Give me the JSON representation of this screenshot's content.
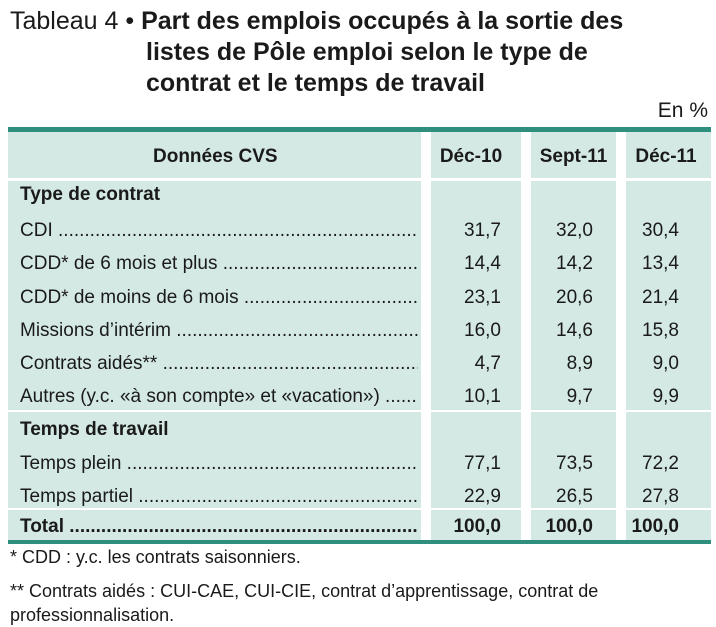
{
  "title": {
    "prefix": "Tableau 4 •",
    "line1": "Part des emplois occupés à la sortie des",
    "line2": "listes de Pôle emploi selon le type de",
    "line3": "contrat et le temps de travail"
  },
  "unit": "En %",
  "table": {
    "header": {
      "label": "Données  CVS",
      "cols": [
        "Déc-10",
        "Sept-11",
        "Déc-11"
      ]
    },
    "sections": [
      {
        "title": "Type de contrat",
        "rows": [
          {
            "label": "CDI",
            "values": [
              "31,7",
              "32,0",
              "30,4"
            ]
          },
          {
            "label": "CDD* de 6 mois et plus",
            "values": [
              "14,4",
              "14,2",
              "13,4"
            ]
          },
          {
            "label": "CDD* de moins de 6 mois",
            "values": [
              "23,1",
              "20,6",
              "21,4"
            ]
          },
          {
            "label": "Missions d’intérim",
            "values": [
              "16,0",
              "14,6",
              "15,8"
            ]
          },
          {
            "label": "Contrats aidés**",
            "values": [
              "4,7",
              "8,9",
              "9,0"
            ]
          },
          {
            "label": "Autres (y.c. «à son compte» et «vacation»)",
            "values": [
              "10,1",
              "9,7",
              "9,9"
            ]
          }
        ]
      },
      {
        "title": "Temps de travail",
        "rows": [
          {
            "label": "Temps plein",
            "values": [
              "77,1",
              "73,5",
              "72,2"
            ]
          },
          {
            "label": "Temps partiel",
            "values": [
              "22,9",
              "26,5",
              "27,8"
            ]
          }
        ]
      }
    ],
    "total": {
      "label": "Total",
      "values": [
        "100,0",
        "100,0",
        "100,0"
      ]
    }
  },
  "footnotes": [
    "* CDD :  y.c. les contrats saisonniers.",
    "** Contrats aidés : CUI-CAE, CUI-CIE, contrat d’apprentissage, contrat de professionnalisation."
  ]
}
